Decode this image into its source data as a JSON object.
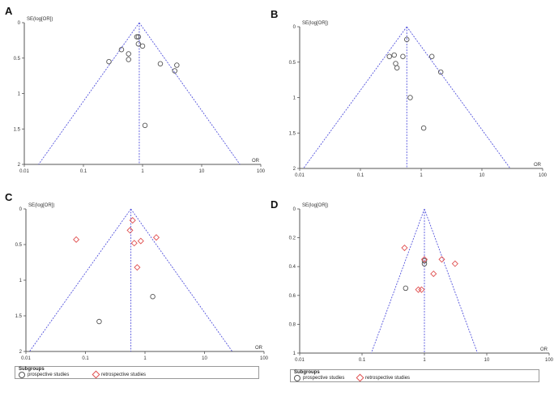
{
  "chart_data": [
    {
      "panel": "A",
      "type": "scatter",
      "ylabel": "SE(log[OR])",
      "xlabel": "OR",
      "xscale": "log",
      "xlim": [
        0.01,
        100
      ],
      "ylim": [
        0,
        2
      ],
      "y_inverted": true,
      "x_ticks": [
        "0.01",
        "0.1",
        "1",
        "10",
        "100"
      ],
      "y_ticks": [
        "0",
        "0.5",
        "1",
        "1.5",
        "2"
      ],
      "x_tick_values": [
        0.01,
        0.1,
        1,
        10,
        100
      ],
      "y_tick_values": [
        0,
        0.5,
        1,
        1.5,
        2
      ],
      "pooled_or": 0.88,
      "series": [
        {
          "marker": "circle",
          "color": "#555555",
          "points": [
            [
              0.27,
              0.55
            ],
            [
              0.44,
              0.38
            ],
            [
              0.58,
              0.44
            ],
            [
              0.58,
              0.52
            ],
            [
              0.8,
              0.2
            ],
            [
              0.85,
              0.2
            ],
            [
              0.85,
              0.3
            ],
            [
              1.0,
              0.33
            ],
            [
              1.1,
              1.45
            ],
            [
              2.0,
              0.58
            ],
            [
              3.5,
              0.68
            ],
            [
              3.8,
              0.6
            ]
          ]
        }
      ]
    },
    {
      "panel": "B",
      "type": "scatter",
      "ylabel": "SE(log[OR])",
      "xlabel": "OR",
      "xscale": "log",
      "xlim": [
        0.01,
        100
      ],
      "ylim": [
        0,
        2
      ],
      "y_inverted": true,
      "x_ticks": [
        "0.01",
        "0.1",
        "1",
        "10",
        "100"
      ],
      "y_ticks": [
        "0",
        "0.5",
        "1",
        "1.5",
        "2"
      ],
      "x_tick_values": [
        0.01,
        0.1,
        1,
        10,
        100
      ],
      "y_tick_values": [
        0,
        0.5,
        1,
        1.5,
        2
      ],
      "pooled_or": 0.58,
      "series": [
        {
          "marker": "circle",
          "color": "#555555",
          "points": [
            [
              0.3,
              0.42
            ],
            [
              0.36,
              0.4
            ],
            [
              0.38,
              0.52
            ],
            [
              0.4,
              0.58
            ],
            [
              0.5,
              0.42
            ],
            [
              0.58,
              0.18
            ],
            [
              0.66,
              1.0
            ],
            [
              1.1,
              1.43
            ],
            [
              1.5,
              0.42
            ],
            [
              2.1,
              0.64
            ]
          ]
        }
      ]
    },
    {
      "panel": "C",
      "type": "scatter",
      "ylabel": "SE(log[OR])",
      "xlabel": "OR",
      "xscale": "log",
      "xlim": [
        0.01,
        100
      ],
      "ylim": [
        0,
        2
      ],
      "y_inverted": true,
      "x_ticks": [
        "0.01",
        "0.1",
        "1",
        "10",
        "100"
      ],
      "y_ticks": [
        "0",
        "0.5",
        "1",
        "1.5",
        "2"
      ],
      "x_tick_values": [
        0.01,
        0.1,
        1,
        10,
        100
      ],
      "y_tick_values": [
        0,
        0.5,
        1,
        1.5,
        2
      ],
      "pooled_or": 0.58,
      "series": [
        {
          "name": "prospective studies",
          "marker": "circle",
          "color": "#555555",
          "points": [
            [
              0.17,
              1.58
            ],
            [
              1.35,
              1.23
            ]
          ]
        },
        {
          "name": "retrospective studies",
          "marker": "diamond",
          "color": "#e05050",
          "points": [
            [
              0.07,
              0.43
            ],
            [
              0.56,
              0.3
            ],
            [
              0.62,
              0.16
            ],
            [
              0.66,
              0.48
            ],
            [
              0.74,
              0.82
            ],
            [
              0.85,
              0.45
            ],
            [
              1.55,
              0.4
            ]
          ]
        }
      ],
      "legend": {
        "title": "Subgroups",
        "position": "bottom"
      }
    },
    {
      "panel": "D",
      "type": "scatter",
      "ylabel": "SE(log[OR])",
      "xlabel": "OR",
      "xscale": "log",
      "xlim": [
        0.01,
        100
      ],
      "ylim": [
        0,
        1
      ],
      "y_inverted": true,
      "x_ticks": [
        "0.01",
        "0.1",
        "1",
        "10",
        "100"
      ],
      "y_ticks": [
        "0",
        "0.2",
        "0.4",
        "0.6",
        "0.8",
        "1"
      ],
      "x_tick_values": [
        0.01,
        0.1,
        1,
        10,
        100
      ],
      "y_tick_values": [
        0,
        0.2,
        0.4,
        0.6,
        0.8,
        1
      ],
      "pooled_or": 1.0,
      "series": [
        {
          "name": "prospective studies",
          "marker": "circle",
          "color": "#555555",
          "points": [
            [
              0.5,
              0.55
            ],
            [
              1.0,
              0.36
            ],
            [
              1.0,
              0.38
            ]
          ]
        },
        {
          "name": "retrospective studies",
          "marker": "diamond",
          "color": "#e05050",
          "points": [
            [
              0.48,
              0.27
            ],
            [
              0.8,
              0.56
            ],
            [
              0.9,
              0.56
            ],
            [
              1.0,
              0.35
            ],
            [
              1.4,
              0.45
            ],
            [
              1.9,
              0.35
            ],
            [
              3.1,
              0.38
            ]
          ]
        }
      ],
      "legend": {
        "title": "Subgroups",
        "position": "bottom"
      }
    }
  ],
  "colors": {
    "funnel": "#5555dd",
    "circle": "#555555",
    "diamond": "#e05050",
    "axis": "#555555"
  }
}
